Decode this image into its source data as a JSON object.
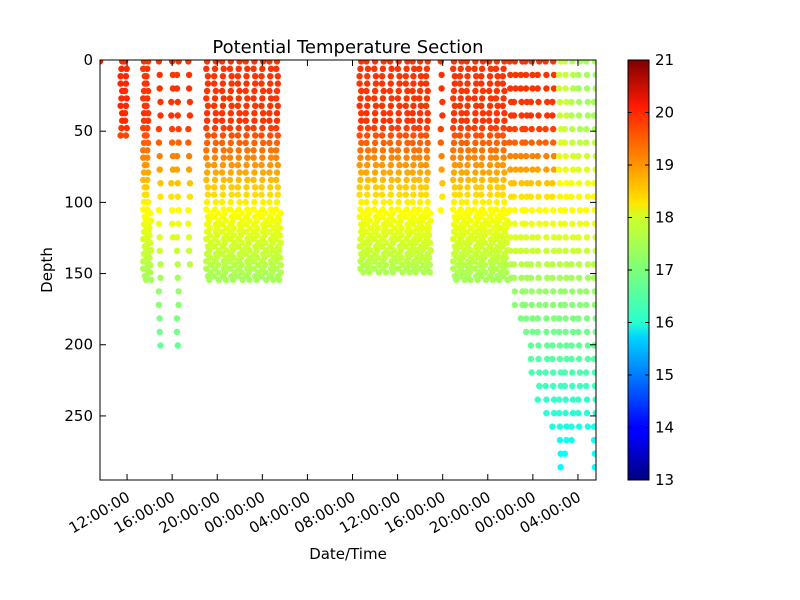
{
  "chart_data": {
    "type": "scatter",
    "title": "Potential Temperature Section",
    "xlabel": "Date/Time",
    "ylabel": "Depth",
    "x_tick_labels": [
      "12:00:00",
      "16:00:00",
      "20:00:00",
      "00:00:00",
      "04:00:00",
      "08:00:00",
      "12:00:00",
      "16:00:00",
      "20:00:00",
      "00:00:00",
      "04:00:00"
    ],
    "x_tick_hours": [
      12,
      16,
      20,
      24,
      28,
      32,
      36,
      40,
      44,
      48,
      52
    ],
    "xlim_hours": [
      9.6,
      53.6
    ],
    "y_ticks": [
      0,
      50,
      100,
      150,
      200,
      250
    ],
    "ylim": [
      0,
      295
    ],
    "y_inverted": true,
    "colorbar": {
      "colormap": "jet",
      "min": 13,
      "max": 21,
      "ticks": [
        13,
        14,
        15,
        16,
        17,
        18,
        19,
        20,
        21
      ]
    },
    "casts": [
      {
        "hour": 9.6,
        "max_depth": 8,
        "temp_surface": 19.8,
        "dense": false
      },
      {
        "hour": 11.5,
        "max_depth": 55,
        "temp_surface": 19.7,
        "dense": true
      },
      {
        "hour": 11.9,
        "max_depth": 55,
        "temp_surface": 19.7,
        "dense": true
      },
      {
        "hour": 13.5,
        "max_depth": 155,
        "temp_surface": 19.6,
        "dense": true
      },
      {
        "hour": 13.8,
        "max_depth": 152,
        "temp_surface": 19.6,
        "dense": true
      },
      {
        "hour": 14.9,
        "max_depth": 208,
        "temp_surface": 19.6,
        "dense": false
      },
      {
        "hour": 16.0,
        "max_depth": 130,
        "temp_surface": 19.6,
        "dense": false
      },
      {
        "hour": 16.5,
        "max_depth": 208,
        "temp_surface": 19.6,
        "dense": false
      },
      {
        "hour": 17.5,
        "max_depth": 145,
        "temp_surface": 19.6,
        "dense": false
      },
      {
        "hour": 19.1,
        "max_depth": 155,
        "temp_surface": 19.6,
        "dense": true
      },
      {
        "hour": 19.8,
        "max_depth": 155,
        "temp_surface": 19.6,
        "dense": true
      },
      {
        "hour": 20.5,
        "max_depth": 155,
        "temp_surface": 19.6,
        "dense": true
      },
      {
        "hour": 21.2,
        "max_depth": 155,
        "temp_surface": 19.6,
        "dense": true
      },
      {
        "hour": 21.9,
        "max_depth": 155,
        "temp_surface": 19.6,
        "dense": true
      },
      {
        "hour": 22.6,
        "max_depth": 155,
        "temp_surface": 19.6,
        "dense": true
      },
      {
        "hour": 23.3,
        "max_depth": 155,
        "temp_surface": 19.6,
        "dense": true
      },
      {
        "hour": 24.0,
        "max_depth": 155,
        "temp_surface": 19.6,
        "dense": true
      },
      {
        "hour": 24.7,
        "max_depth": 155,
        "temp_surface": 19.6,
        "dense": true
      },
      {
        "hour": 25.3,
        "max_depth": 155,
        "temp_surface": 19.6,
        "dense": true
      },
      {
        "hour": 32.7,
        "max_depth": 150,
        "temp_surface": 19.6,
        "dense": true
      },
      {
        "hour": 33.3,
        "max_depth": 150,
        "temp_surface": 19.6,
        "dense": true
      },
      {
        "hour": 34.0,
        "max_depth": 150,
        "temp_surface": 19.6,
        "dense": true
      },
      {
        "hour": 34.7,
        "max_depth": 150,
        "temp_surface": 19.6,
        "dense": true
      },
      {
        "hour": 35.4,
        "max_depth": 150,
        "temp_surface": 19.6,
        "dense": true
      },
      {
        "hour": 36.1,
        "max_depth": 150,
        "temp_surface": 19.6,
        "dense": true
      },
      {
        "hour": 36.8,
        "max_depth": 150,
        "temp_surface": 19.6,
        "dense": true
      },
      {
        "hour": 37.4,
        "max_depth": 150,
        "temp_surface": 19.6,
        "dense": true
      },
      {
        "hour": 38.0,
        "max_depth": 150,
        "temp_surface": 19.6,
        "dense": true
      },
      {
        "hour": 38.6,
        "max_depth": 150,
        "temp_surface": 19.6,
        "dense": true
      },
      {
        "hour": 39.9,
        "max_depth": 110,
        "temp_surface": 19.6,
        "dense": false
      },
      {
        "hour": 41.0,
        "max_depth": 155,
        "temp_surface": 19.6,
        "dense": true
      },
      {
        "hour": 41.6,
        "max_depth": 155,
        "temp_surface": 19.6,
        "dense": true
      },
      {
        "hour": 42.2,
        "max_depth": 155,
        "temp_surface": 19.6,
        "dense": true
      },
      {
        "hour": 42.9,
        "max_depth": 155,
        "temp_surface": 19.6,
        "dense": true
      },
      {
        "hour": 43.5,
        "max_depth": 155,
        "temp_surface": 19.6,
        "dense": true
      },
      {
        "hour": 44.2,
        "max_depth": 155,
        "temp_surface": 19.6,
        "dense": true
      },
      {
        "hour": 44.8,
        "max_depth": 155,
        "temp_surface": 19.6,
        "dense": true
      },
      {
        "hour": 45.4,
        "max_depth": 155,
        "temp_surface": 19.6,
        "dense": true
      },
      {
        "hour": 46.0,
        "max_depth": 160,
        "temp_surface": 19.6,
        "dense": false
      },
      {
        "hour": 46.4,
        "max_depth": 175,
        "temp_surface": 19.6,
        "dense": false
      },
      {
        "hour": 47.0,
        "max_depth": 185,
        "temp_surface": 19.6,
        "dense": false
      },
      {
        "hour": 47.4,
        "max_depth": 200,
        "temp_surface": 19.6,
        "dense": false
      },
      {
        "hour": 47.9,
        "max_depth": 225,
        "temp_surface": 19.6,
        "dense": false
      },
      {
        "hour": 48.5,
        "max_depth": 240,
        "temp_surface": 19.6,
        "dense": false
      },
      {
        "hour": 49.2,
        "max_depth": 250,
        "temp_surface": 19.6,
        "dense": false
      },
      {
        "hour": 49.8,
        "max_depth": 260,
        "temp_surface": 19.6,
        "dense": false
      },
      {
        "hour": 50.4,
        "max_depth": 290,
        "temp_surface": 17.6,
        "dense": false
      },
      {
        "hour": 50.9,
        "max_depth": 280,
        "temp_surface": 17.6,
        "dense": false
      },
      {
        "hour": 51.5,
        "max_depth": 270,
        "temp_surface": 17.4,
        "dense": false
      },
      {
        "hour": 52.1,
        "max_depth": 265,
        "temp_surface": 17.3,
        "dense": false
      },
      {
        "hour": 52.8,
        "max_depth": 260,
        "temp_surface": 17.3,
        "dense": false
      },
      {
        "hour": 53.5,
        "max_depth": 290,
        "temp_surface": 17.3,
        "dense": false
      }
    ]
  }
}
